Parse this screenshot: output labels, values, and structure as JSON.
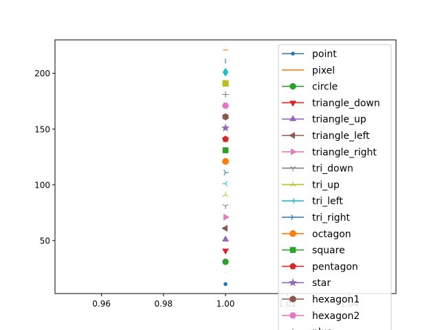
{
  "chart_data": {
    "type": "scatter",
    "title": "",
    "xlabel": "",
    "ylabel": "",
    "xlim": [
      0.945,
      1.055
    ],
    "ylim": [
      2.5,
      230
    ],
    "x_ticks": [
      0.96,
      0.98,
      1.0,
      1.02,
      1.04
    ],
    "x_tick_labels": [
      "0.96",
      "0.98",
      "1.00",
      "1.02",
      "1.04"
    ],
    "y_ticks": [
      50,
      100,
      150,
      200
    ],
    "y_tick_labels": [
      "50",
      "100",
      "150",
      "200"
    ],
    "grid": false,
    "legend_position": "upper right",
    "series": [
      {
        "name": "point",
        "marker": "point",
        "color": "#1f77b4",
        "x": 1.0,
        "y": 11
      },
      {
        "name": "pixel",
        "marker": "pixel",
        "color": "#ff7f0e",
        "x": 1.0,
        "y": 21
      },
      {
        "name": "circle",
        "marker": "circle",
        "color": "#2ca02c",
        "x": 1.0,
        "y": 31
      },
      {
        "name": "triangle_down",
        "marker": "triangle_down",
        "color": "#d62728",
        "x": 1.0,
        "y": 41
      },
      {
        "name": "triangle_up",
        "marker": "triangle_up",
        "color": "#9467bd",
        "x": 1.0,
        "y": 51
      },
      {
        "name": "triangle_left",
        "marker": "triangle_left",
        "color": "#8c564b",
        "x": 1.0,
        "y": 61
      },
      {
        "name": "triangle_right",
        "marker": "triangle_right",
        "color": "#e377c2",
        "x": 1.0,
        "y": 71
      },
      {
        "name": "tri_down",
        "marker": "tri_down",
        "color": "#7f7f7f",
        "x": 1.0,
        "y": 81
      },
      {
        "name": "tri_up",
        "marker": "tri_up",
        "color": "#bcbd22",
        "x": 1.0,
        "y": 91
      },
      {
        "name": "tri_left",
        "marker": "tri_left",
        "color": "#17becf",
        "x": 1.0,
        "y": 101
      },
      {
        "name": "tri_right",
        "marker": "tri_right",
        "color": "#1f77b4",
        "x": 1.0,
        "y": 111
      },
      {
        "name": "octagon",
        "marker": "octagon",
        "color": "#ff7f0e",
        "x": 1.0,
        "y": 121
      },
      {
        "name": "square",
        "marker": "square",
        "color": "#2ca02c",
        "x": 1.0,
        "y": 131
      },
      {
        "name": "pentagon",
        "marker": "pentagon",
        "color": "#d62728",
        "x": 1.0,
        "y": 141
      },
      {
        "name": "star",
        "marker": "star",
        "color": "#9467bd",
        "x": 1.0,
        "y": 151
      },
      {
        "name": "hexagon1",
        "marker": "hexagon1",
        "color": "#8c564b",
        "x": 1.0,
        "y": 161
      },
      {
        "name": "hexagon2",
        "marker": "hexagon2",
        "color": "#e377c2",
        "x": 1.0,
        "y": 171
      },
      {
        "name": "plus",
        "marker": "plus",
        "color": "#7f7f7f",
        "x": 1.0,
        "y": 181
      },
      {
        "name": "",
        "marker": "x",
        "color": "#bcbd22",
        "x": 1.0,
        "y": 191
      },
      {
        "name": "",
        "marker": "thin_diamond",
        "color": "#17becf",
        "x": 1.0,
        "y": 201
      },
      {
        "name": "",
        "marker": "vline",
        "color": "#1f77b4",
        "x": 1.0,
        "y": 211
      },
      {
        "name": "",
        "marker": "hline",
        "color": "#ff7f0e",
        "x": 1.0,
        "y": 221
      }
    ]
  }
}
